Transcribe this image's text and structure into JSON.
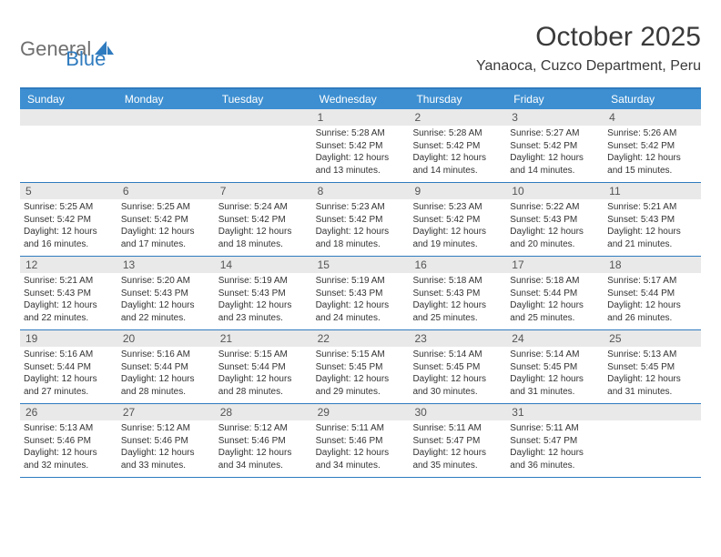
{
  "logo": {
    "text1": "General",
    "text2": "Blue"
  },
  "title": "October 2025",
  "location": "Yanaoca, Cuzco Department, Peru",
  "colors": {
    "header_bar": "#3d8fd1",
    "border": "#2f7bbf",
    "daynum_bg": "#e9e9e9",
    "text": "#333333",
    "logo_gray": "#6f6f6f",
    "logo_blue": "#2f7bbf"
  },
  "weekdays": [
    "Sunday",
    "Monday",
    "Tuesday",
    "Wednesday",
    "Thursday",
    "Friday",
    "Saturday"
  ],
  "layout": {
    "first_weekday_index": 3,
    "num_days": 31,
    "columns": 7
  },
  "days": [
    {
      "n": 1,
      "sunrise": "5:28 AM",
      "sunset": "5:42 PM",
      "daylight": "12 hours and 13 minutes."
    },
    {
      "n": 2,
      "sunrise": "5:28 AM",
      "sunset": "5:42 PM",
      "daylight": "12 hours and 14 minutes."
    },
    {
      "n": 3,
      "sunrise": "5:27 AM",
      "sunset": "5:42 PM",
      "daylight": "12 hours and 14 minutes."
    },
    {
      "n": 4,
      "sunrise": "5:26 AM",
      "sunset": "5:42 PM",
      "daylight": "12 hours and 15 minutes."
    },
    {
      "n": 5,
      "sunrise": "5:25 AM",
      "sunset": "5:42 PM",
      "daylight": "12 hours and 16 minutes."
    },
    {
      "n": 6,
      "sunrise": "5:25 AM",
      "sunset": "5:42 PM",
      "daylight": "12 hours and 17 minutes."
    },
    {
      "n": 7,
      "sunrise": "5:24 AM",
      "sunset": "5:42 PM",
      "daylight": "12 hours and 18 minutes."
    },
    {
      "n": 8,
      "sunrise": "5:23 AM",
      "sunset": "5:42 PM",
      "daylight": "12 hours and 18 minutes."
    },
    {
      "n": 9,
      "sunrise": "5:23 AM",
      "sunset": "5:42 PM",
      "daylight": "12 hours and 19 minutes."
    },
    {
      "n": 10,
      "sunrise": "5:22 AM",
      "sunset": "5:43 PM",
      "daylight": "12 hours and 20 minutes."
    },
    {
      "n": 11,
      "sunrise": "5:21 AM",
      "sunset": "5:43 PM",
      "daylight": "12 hours and 21 minutes."
    },
    {
      "n": 12,
      "sunrise": "5:21 AM",
      "sunset": "5:43 PM",
      "daylight": "12 hours and 22 minutes."
    },
    {
      "n": 13,
      "sunrise": "5:20 AM",
      "sunset": "5:43 PM",
      "daylight": "12 hours and 22 minutes."
    },
    {
      "n": 14,
      "sunrise": "5:19 AM",
      "sunset": "5:43 PM",
      "daylight": "12 hours and 23 minutes."
    },
    {
      "n": 15,
      "sunrise": "5:19 AM",
      "sunset": "5:43 PM",
      "daylight": "12 hours and 24 minutes."
    },
    {
      "n": 16,
      "sunrise": "5:18 AM",
      "sunset": "5:43 PM",
      "daylight": "12 hours and 25 minutes."
    },
    {
      "n": 17,
      "sunrise": "5:18 AM",
      "sunset": "5:44 PM",
      "daylight": "12 hours and 25 minutes."
    },
    {
      "n": 18,
      "sunrise": "5:17 AM",
      "sunset": "5:44 PM",
      "daylight": "12 hours and 26 minutes."
    },
    {
      "n": 19,
      "sunrise": "5:16 AM",
      "sunset": "5:44 PM",
      "daylight": "12 hours and 27 minutes."
    },
    {
      "n": 20,
      "sunrise": "5:16 AM",
      "sunset": "5:44 PM",
      "daylight": "12 hours and 28 minutes."
    },
    {
      "n": 21,
      "sunrise": "5:15 AM",
      "sunset": "5:44 PM",
      "daylight": "12 hours and 28 minutes."
    },
    {
      "n": 22,
      "sunrise": "5:15 AM",
      "sunset": "5:45 PM",
      "daylight": "12 hours and 29 minutes."
    },
    {
      "n": 23,
      "sunrise": "5:14 AM",
      "sunset": "5:45 PM",
      "daylight": "12 hours and 30 minutes."
    },
    {
      "n": 24,
      "sunrise": "5:14 AM",
      "sunset": "5:45 PM",
      "daylight": "12 hours and 31 minutes."
    },
    {
      "n": 25,
      "sunrise": "5:13 AM",
      "sunset": "5:45 PM",
      "daylight": "12 hours and 31 minutes."
    },
    {
      "n": 26,
      "sunrise": "5:13 AM",
      "sunset": "5:46 PM",
      "daylight": "12 hours and 32 minutes."
    },
    {
      "n": 27,
      "sunrise": "5:12 AM",
      "sunset": "5:46 PM",
      "daylight": "12 hours and 33 minutes."
    },
    {
      "n": 28,
      "sunrise": "5:12 AM",
      "sunset": "5:46 PM",
      "daylight": "12 hours and 34 minutes."
    },
    {
      "n": 29,
      "sunrise": "5:11 AM",
      "sunset": "5:46 PM",
      "daylight": "12 hours and 34 minutes."
    },
    {
      "n": 30,
      "sunrise": "5:11 AM",
      "sunset": "5:47 PM",
      "daylight": "12 hours and 35 minutes."
    },
    {
      "n": 31,
      "sunrise": "5:11 AM",
      "sunset": "5:47 PM",
      "daylight": "12 hours and 36 minutes."
    }
  ],
  "labels": {
    "sunrise": "Sunrise:",
    "sunset": "Sunset:",
    "daylight": "Daylight:"
  }
}
